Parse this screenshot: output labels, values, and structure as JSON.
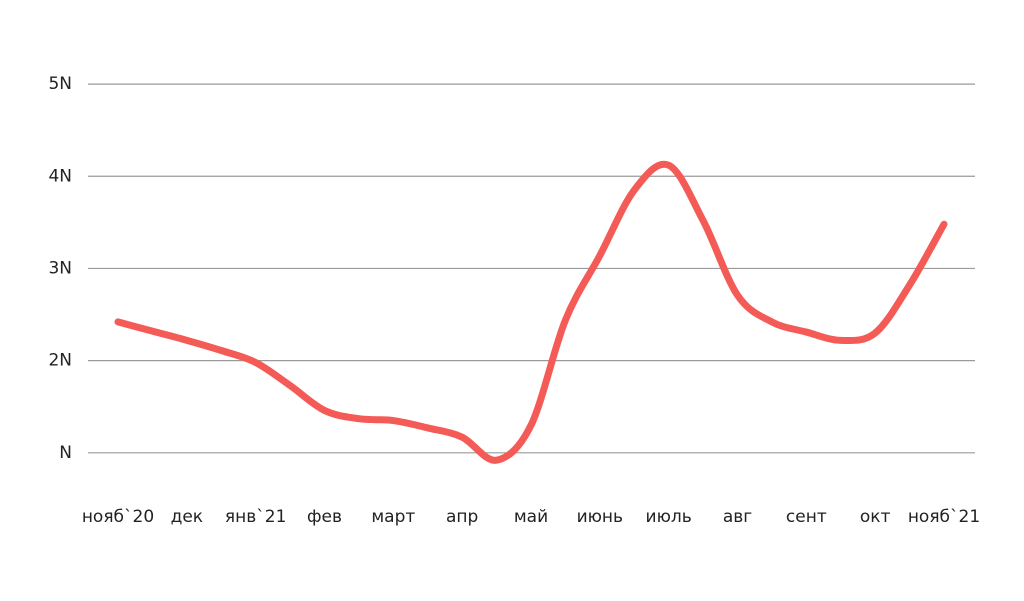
{
  "chart_data": {
    "type": "line",
    "categories": [
      "нояб`20",
      null,
      "дек",
      null,
      "янв`21",
      null,
      "фев",
      null,
      "март",
      null,
      "апр",
      null,
      "май",
      null,
      "июнь",
      null,
      "июль",
      null,
      "авг",
      null,
      "сент",
      null,
      "окт",
      null,
      "нояб`21"
    ],
    "values": [
      2.42,
      2.32,
      2.22,
      2.11,
      1.98,
      1.73,
      1.46,
      1.37,
      1.35,
      1.27,
      1.17,
      0.92,
      1.3,
      2.44,
      3.14,
      3.85,
      4.12,
      3.52,
      2.71,
      2.42,
      2.31,
      2.22,
      2.3,
      2.82,
      3.48
    ],
    "color": "#f45b57",
    "ylim": [
      0,
      5.5
    ],
    "yticks": [
      {
        "value": 1,
        "label": "N"
      },
      {
        "value": 2,
        "label": "2N"
      },
      {
        "value": 3,
        "label": "3N"
      },
      {
        "value": 4,
        "label": "4N"
      },
      {
        "value": 5,
        "label": "5N"
      }
    ],
    "grid": true
  }
}
